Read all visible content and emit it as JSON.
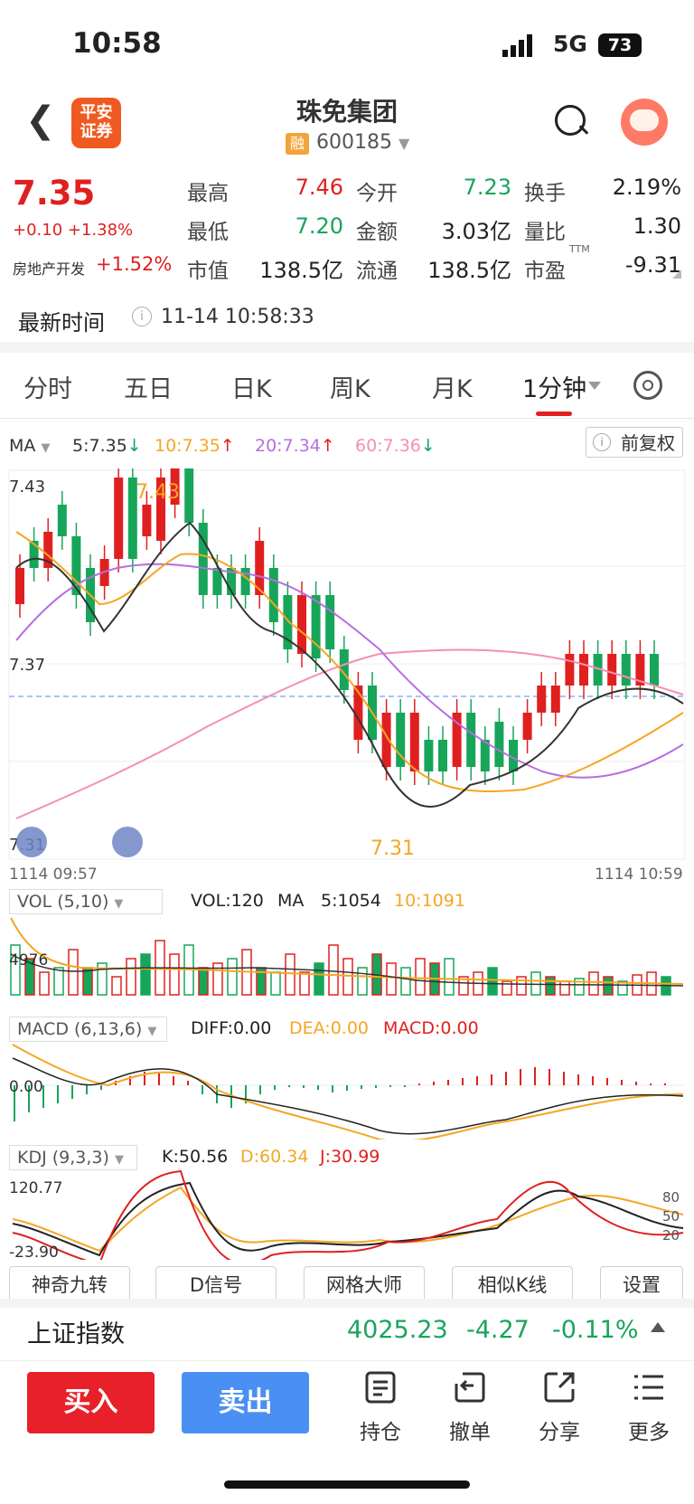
{
  "status": {
    "time": "10:58",
    "network": "5G",
    "battery": "73"
  },
  "header": {
    "title": "珠免集团",
    "code": "600185",
    "badge": "融",
    "logo_line1": "平安",
    "logo_line2": "证券"
  },
  "quote": {
    "price": "7.35",
    "change": "+0.10 +1.38%",
    "sector_name": "房地产开发",
    "sector_change": "+1.52%",
    "fields": [
      {
        "label": "最高",
        "value": "7.46",
        "color": "red"
      },
      {
        "label": "今开",
        "value": "7.23",
        "color": "green"
      },
      {
        "label": "换手",
        "value": "2.19%",
        "color": "black"
      },
      {
        "label": "最低",
        "value": "7.20",
        "color": "green"
      },
      {
        "label": "金额",
        "value": "3.03亿",
        "color": "black"
      },
      {
        "label": "量比",
        "value": "1.30",
        "color": "black"
      },
      {
        "label": "市值",
        "value": "138.5亿",
        "color": "black"
      },
      {
        "label": "流通",
        "value": "138.5亿",
        "color": "black"
      },
      {
        "label": "市盈",
        "value": "-9.31",
        "color": "black"
      }
    ],
    "ttm": "TTM",
    "latest_time_label": "最新时间",
    "latest_time": "11-14 10:58:33"
  },
  "tabs": [
    {
      "label": "分时"
    },
    {
      "label": "五日"
    },
    {
      "label": "日K"
    },
    {
      "label": "周K"
    },
    {
      "label": "月K"
    },
    {
      "label": "1分钟"
    }
  ],
  "ma_row": {
    "label": "MA",
    "ma5": "5:7.35",
    "ma10": "10:7.35",
    "ma20": "20:7.34",
    "ma60": "60:7.36",
    "fq": "前复权"
  },
  "main_chart": {
    "y_labels": [
      "7.43",
      "7.37",
      "7.31"
    ],
    "high_label": "7.43",
    "low_label": "7.31",
    "time_start": "1114 09:57",
    "time_end": "1114 10:59"
  },
  "vol": {
    "label": "VOL (5,10)",
    "vol": "VOL:120",
    "ma": "MA",
    "ma5": "5:1054",
    "ma10": "10:1091",
    "y_label": "4976"
  },
  "macd": {
    "label": "MACD (6,13,6)",
    "diff": "DIFF:0.00",
    "dea": "DEA:0.00",
    "macd": "MACD:0.00",
    "y_label": "0.00"
  },
  "kdj": {
    "label": "KDJ (9,3,3)",
    "k": "K:50.56",
    "d": "D:60.34",
    "j": "J:30.99",
    "y_top": "120.77",
    "y_bottom": "-23.90",
    "r80": "80",
    "r50": "50",
    "r20": "20"
  },
  "func_buttons": [
    "神奇九转",
    "D信号",
    "网格大师",
    "相似K线",
    "设置"
  ],
  "index": {
    "name": "上证指数",
    "value": "4025.23",
    "change": "-4.27",
    "pct": "-0.11%"
  },
  "bottom": {
    "buy": "买入",
    "sell": "卖出",
    "actions": [
      {
        "label": "持仓",
        "icon": "holdings-icon"
      },
      {
        "label": "撤单",
        "icon": "cancel-order-icon"
      },
      {
        "label": "分享",
        "icon": "share-icon"
      },
      {
        "label": "更多",
        "icon": "more-icon"
      }
    ]
  },
  "colors": {
    "up": "#e02020",
    "down": "#17a55a",
    "ma5": "#333333",
    "ma10": "#f5a623",
    "ma20": "#b56fe0",
    "ma60": "#f58fb4"
  }
}
